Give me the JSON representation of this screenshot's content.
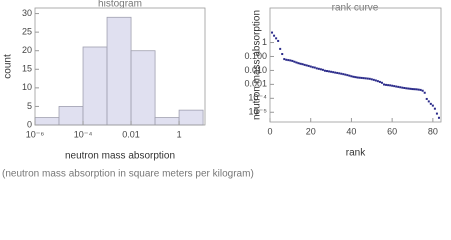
{
  "chart_data": [
    {
      "type": "histogram",
      "title": "histogram",
      "xlabel": "neutron mass absorption",
      "ylabel": "count",
      "bins": [
        1e-06,
        1e-05,
        0.0001,
        0.001,
        0.01,
        0.1,
        1,
        10
      ],
      "values": [
        2,
        5,
        21,
        29,
        20,
        2,
        4
      ],
      "color": "#e0e0f0",
      "xlog": true,
      "xlim": [
        1e-06,
        12
      ],
      "xticks": [
        {
          "value": 1e-06,
          "label": "10⁻⁶"
        },
        {
          "value": 0.0001,
          "label": "10⁻⁴"
        },
        0.01,
        1
      ],
      "ylim": [
        0,
        31.5
      ],
      "yticks": [
        0,
        5,
        10,
        15,
        20,
        25,
        30
      ]
    },
    {
      "type": "scatter",
      "title": "rank curve",
      "xlabel": "rank",
      "ylabel": "neutron mass absorption",
      "x": [
        1,
        2,
        3,
        4,
        5,
        6,
        7,
        8,
        9,
        10,
        11,
        12,
        13,
        14,
        15,
        16,
        17,
        18,
        19,
        20,
        21,
        22,
        23,
        24,
        25,
        26,
        27,
        28,
        29,
        30,
        31,
        32,
        33,
        34,
        35,
        36,
        37,
        38,
        39,
        40,
        41,
        42,
        43,
        44,
        45,
        46,
        47,
        48,
        49,
        50,
        51,
        52,
        53,
        54,
        55,
        56,
        57,
        58,
        59,
        60,
        61,
        62,
        63,
        64,
        65,
        66,
        67,
        68,
        69,
        70,
        71,
        72,
        73,
        74,
        75,
        76,
        77,
        78,
        79,
        80,
        81,
        82,
        83
      ],
      "values": [
        5.2,
        3.1,
        2.0,
        1.3,
        0.35,
        0.15,
        0.065,
        0.058,
        0.055,
        0.052,
        0.048,
        0.042,
        0.037,
        0.033,
        0.03,
        0.028,
        0.025,
        0.023,
        0.021,
        0.019,
        0.017,
        0.016,
        0.014,
        0.013,
        0.012,
        0.011,
        0.0095,
        0.009,
        0.0085,
        0.008,
        0.0075,
        0.007,
        0.0066,
        0.0062,
        0.0058,
        0.0054,
        0.005,
        0.0046,
        0.0042,
        0.0038,
        0.0035,
        0.0033,
        0.0031,
        0.003,
        0.0029,
        0.0028,
        0.0027,
        0.0026,
        0.0025,
        0.0023,
        0.0021,
        0.0019,
        0.0017,
        0.0015,
        0.0013,
        0.00098,
        0.00092,
        0.00088,
        0.00085,
        0.0008,
        0.00075,
        0.0007,
        0.00066,
        0.00062,
        0.00058,
        0.00055,
        0.00052,
        0.0005,
        0.00048,
        0.00046,
        0.00045,
        0.00044,
        0.00042,
        0.0004,
        0.00035,
        0.00025,
        9e-05,
        6e-05,
        4e-05,
        3e-05,
        1.8e-05,
        8e-06,
        4e-06
      ],
      "color": "#2b2b8a",
      "xlim": [
        0,
        84
      ],
      "xticks": [
        0,
        20,
        40,
        60,
        80
      ],
      "ylog": true,
      "ylim": [
        2e-06,
        300
      ],
      "yticks": [
        1,
        {
          "value": 0.1,
          "label": "0.100"
        },
        {
          "value": 0.01,
          "label": "0.010"
        },
        {
          "value": 0.001,
          "label": "0.001"
        },
        {
          "value": 0.0001,
          "label": "10⁻⁴"
        },
        {
          "value": 1e-05,
          "label": "10⁻⁵"
        }
      ]
    }
  ],
  "footnote": "(neutron mass absorption in square meters per kilogram)"
}
